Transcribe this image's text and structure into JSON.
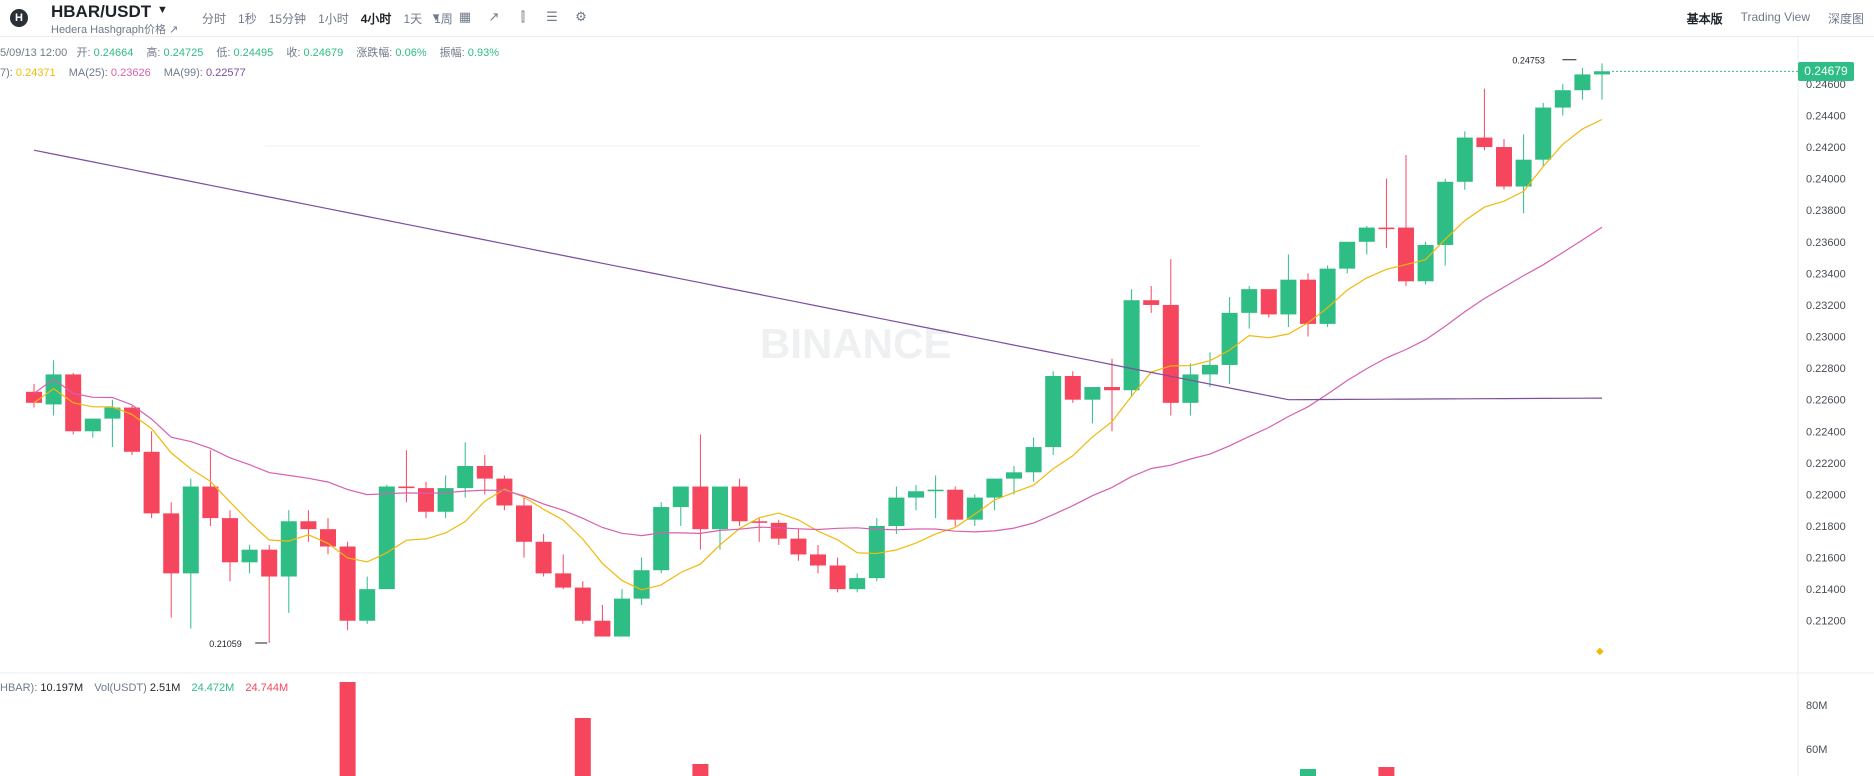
{
  "header": {
    "symbol": "HBAR/USDT",
    "subname": "Hedera Hashgraph价格 ↗",
    "timeframes": [
      "分时",
      "1秒",
      "15分钟",
      "1小时",
      "4小时",
      "1天",
      "1周"
    ],
    "active_timeframe": "4小时",
    "views": [
      "基本版",
      "Trading View",
      "深度图"
    ],
    "active_view": "基本版"
  },
  "ohlc": {
    "date": "5/09/13 12:00",
    "open_label": "开:",
    "open": "0.24664",
    "high_label": "高:",
    "high": "0.24725",
    "low_label": "低:",
    "low": "0.24495",
    "close_label": "收:",
    "close": "0.24679",
    "change_label": "涨跌幅:",
    "change": "0.06%",
    "amp_label": "振幅:",
    "amp": "0.93%"
  },
  "ma": {
    "ma7_label": "7):",
    "ma7": "0.24371",
    "ma25_label": "MA(25):",
    "ma25": "0.23626",
    "ma99_label": "MA(99):",
    "ma99": "0.22577"
  },
  "volume": {
    "hbar_label": "HBAR):",
    "hbar": "10.197M",
    "usdt_label": "Vol(USDT)",
    "usdt": "2.51M",
    "v1": "24.472M",
    "v2": "24.744M"
  },
  "last_price": "0.24679",
  "colors": {
    "up": "#2ebd85",
    "down": "#f6465d",
    "ma7": "#f0b90b",
    "ma25": "#d660b0",
    "ma99": "#7b4ea0"
  },
  "chart_data": {
    "type": "candlestick",
    "y_ticks": [
      "0.24600",
      "0.24400",
      "0.24200",
      "0.24000",
      "0.23800",
      "0.23600",
      "0.23400",
      "0.23200",
      "0.23000",
      "0.22800",
      "0.22600",
      "0.22400",
      "0.22200",
      "0.22000",
      "0.21800",
      "0.21600",
      "0.21400",
      "0.21200"
    ],
    "ylim": [
      0.2085,
      0.2484
    ],
    "annotations": {
      "high": "0.24753",
      "low": "0.21059"
    },
    "volume_ticks": [
      "80M",
      "60M"
    ],
    "candles": [
      [
        0.2265,
        0.227,
        0.2255,
        0.2258
      ],
      [
        0.2257,
        0.2285,
        0.225,
        0.2276
      ],
      [
        0.2276,
        0.2277,
        0.2238,
        0.224
      ],
      [
        0.224,
        0.2248,
        0.2236,
        0.2248
      ],
      [
        0.2248,
        0.226,
        0.223,
        0.2255
      ],
      [
        0.2255,
        0.2256,
        0.2225,
        0.2227
      ],
      [
        0.2227,
        0.224,
        0.2185,
        0.2188
      ],
      [
        0.2188,
        0.2195,
        0.2122,
        0.215
      ],
      [
        0.215,
        0.221,
        0.2115,
        0.2205
      ],
      [
        0.2205,
        0.2228,
        0.218,
        0.2185
      ],
      [
        0.2185,
        0.219,
        0.2145,
        0.2157
      ],
      [
        0.2157,
        0.2168,
        0.215,
        0.2165
      ],
      [
        0.2165,
        0.2168,
        0.2106,
        0.2148
      ],
      [
        0.2148,
        0.219,
        0.2125,
        0.2183
      ],
      [
        0.2183,
        0.219,
        0.217,
        0.2178
      ],
      [
        0.2178,
        0.2185,
        0.2162,
        0.2167
      ],
      [
        0.2167,
        0.217,
        0.2114,
        0.212
      ],
      [
        0.212,
        0.2148,
        0.2118,
        0.214
      ],
      [
        0.214,
        0.2206,
        0.214,
        0.2205
      ],
      [
        0.2205,
        0.2228,
        0.2195,
        0.2204
      ],
      [
        0.2204,
        0.2208,
        0.2185,
        0.2189
      ],
      [
        0.2189,
        0.2212,
        0.2185,
        0.2204
      ],
      [
        0.2204,
        0.2233,
        0.2198,
        0.2218
      ],
      [
        0.2218,
        0.2225,
        0.22,
        0.221
      ],
      [
        0.221,
        0.2212,
        0.219,
        0.2193
      ],
      [
        0.2193,
        0.2198,
        0.216,
        0.217
      ],
      [
        0.217,
        0.2175,
        0.2148,
        0.215
      ],
      [
        0.215,
        0.2162,
        0.214,
        0.2141
      ],
      [
        0.2141,
        0.2145,
        0.2118,
        0.212
      ],
      [
        0.212,
        0.213,
        0.211,
        0.211
      ],
      [
        0.211,
        0.214,
        0.211,
        0.2134
      ],
      [
        0.2134,
        0.216,
        0.213,
        0.2152
      ],
      [
        0.2152,
        0.2195,
        0.215,
        0.2192
      ],
      [
        0.2192,
        0.2205,
        0.218,
        0.2205
      ],
      [
        0.2205,
        0.2238,
        0.2165,
        0.2178
      ],
      [
        0.2178,
        0.2205,
        0.2165,
        0.2205
      ],
      [
        0.2205,
        0.221,
        0.218,
        0.2183
      ],
      [
        0.2183,
        0.2185,
        0.217,
        0.2182
      ],
      [
        0.2182,
        0.2184,
        0.2168,
        0.2172
      ],
      [
        0.2172,
        0.2178,
        0.2158,
        0.2162
      ],
      [
        0.2162,
        0.2168,
        0.215,
        0.2155
      ],
      [
        0.2155,
        0.216,
        0.2138,
        0.214
      ],
      [
        0.214,
        0.215,
        0.2138,
        0.2147
      ],
      [
        0.2147,
        0.2185,
        0.2145,
        0.218
      ],
      [
        0.218,
        0.2205,
        0.2175,
        0.2198
      ],
      [
        0.2198,
        0.2206,
        0.219,
        0.2202
      ],
      [
        0.2202,
        0.2212,
        0.2185,
        0.2203
      ],
      [
        0.2203,
        0.2205,
        0.218,
        0.2184
      ],
      [
        0.2184,
        0.22,
        0.218,
        0.2198
      ],
      [
        0.2198,
        0.221,
        0.219,
        0.221
      ],
      [
        0.221,
        0.2218,
        0.22,
        0.2214
      ],
      [
        0.2214,
        0.2236,
        0.2208,
        0.223
      ],
      [
        0.223,
        0.2278,
        0.2225,
        0.2275
      ],
      [
        0.2275,
        0.2278,
        0.2258,
        0.226
      ],
      [
        0.226,
        0.2268,
        0.2245,
        0.2268
      ],
      [
        0.2268,
        0.2286,
        0.224,
        0.2266
      ],
      [
        0.2266,
        0.233,
        0.2262,
        0.2323
      ],
      [
        0.2323,
        0.2332,
        0.2315,
        0.232
      ],
      [
        0.232,
        0.2349,
        0.225,
        0.2258
      ],
      [
        0.2258,
        0.2283,
        0.225,
        0.2276
      ],
      [
        0.2276,
        0.229,
        0.2268,
        0.2282
      ],
      [
        0.2282,
        0.2325,
        0.227,
        0.2315
      ],
      [
        0.2315,
        0.2332,
        0.2305,
        0.233
      ],
      [
        0.233,
        0.233,
        0.2312,
        0.2314
      ],
      [
        0.2314,
        0.2352,
        0.2306,
        0.2336
      ],
      [
        0.2336,
        0.234,
        0.23,
        0.2308
      ],
      [
        0.2308,
        0.2345,
        0.2306,
        0.2343
      ],
      [
        0.2343,
        0.236,
        0.234,
        0.236
      ],
      [
        0.236,
        0.237,
        0.2352,
        0.2369
      ],
      [
        0.2369,
        0.24,
        0.2356,
        0.2368
      ],
      [
        0.2369,
        0.2415,
        0.2332,
        0.2335
      ],
      [
        0.2335,
        0.236,
        0.2333,
        0.2358
      ],
      [
        0.2358,
        0.24,
        0.2345,
        0.2398
      ],
      [
        0.2398,
        0.243,
        0.2393,
        0.2426
      ],
      [
        0.2426,
        0.2457,
        0.2418,
        0.242
      ],
      [
        0.242,
        0.2425,
        0.2393,
        0.2395
      ],
      [
        0.2395,
        0.2428,
        0.2378,
        0.2412
      ],
      [
        0.2412,
        0.2448,
        0.2408,
        0.2445
      ],
      [
        0.2445,
        0.246,
        0.244,
        0.2456
      ],
      [
        0.2456,
        0.247,
        0.245,
        0.2466
      ],
      [
        0.2466,
        0.2473,
        0.245,
        0.2468
      ]
    ]
  }
}
